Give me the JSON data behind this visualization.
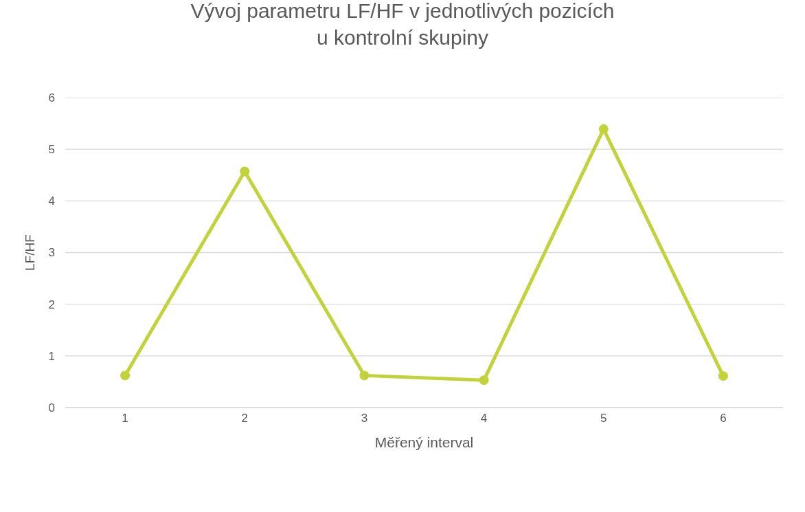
{
  "chart_data": {
    "type": "line",
    "title": "Vývoj parametru LF/HF v jednotlivých pozicích\nu kontrolní skupiny",
    "xlabel": "Měřený interval",
    "ylabel": "LF/HF",
    "categories": [
      "1",
      "2",
      "3",
      "4",
      "5",
      "6"
    ],
    "series": [
      {
        "color": "#c2d23a",
        "values": [
          0.62,
          4.57,
          0.62,
          0.53,
          5.39,
          0.61
        ]
      }
    ],
    "ylim": [
      0,
      6
    ],
    "yticks": [
      0,
      1,
      2,
      3,
      4,
      5,
      6
    ],
    "grid": "y",
    "marker": "circle",
    "line_style": "solid"
  }
}
